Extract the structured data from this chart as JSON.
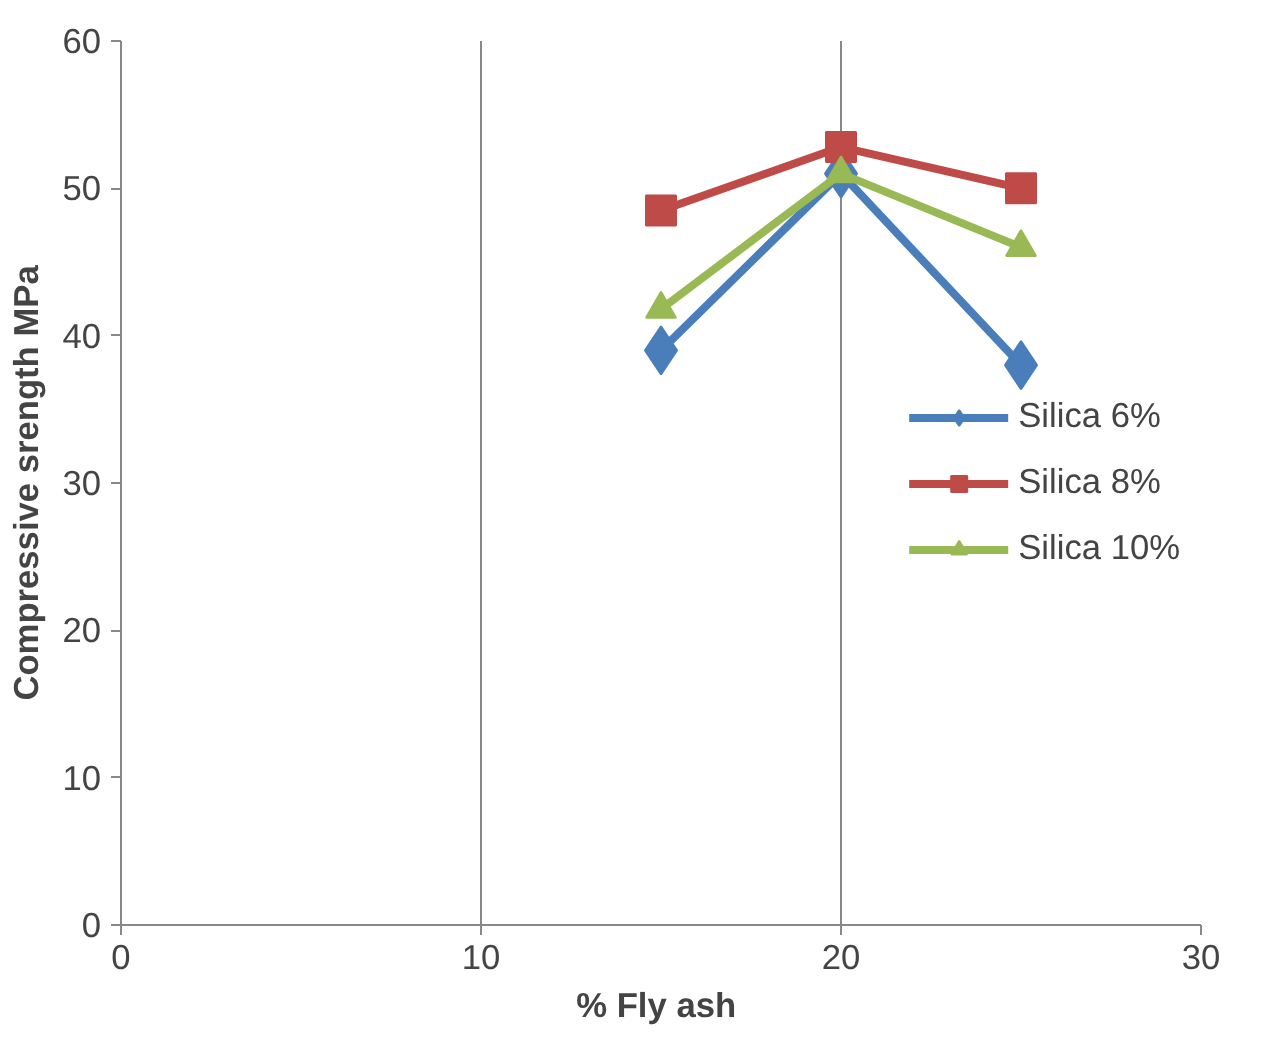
{
  "chart_data": {
    "type": "line",
    "xlabel": "%  Fly ash",
    "ylabel": "Compressive srength MPa",
    "x": [
      15,
      20,
      25
    ],
    "series": [
      {
        "name": "Silica 6%",
        "color": "#4a7ebb",
        "marker": "diamond",
        "values": [
          39,
          51,
          38
        ]
      },
      {
        "name": "Silica 8%",
        "color": "#be4b48",
        "marker": "square",
        "values": [
          48.5,
          52.8,
          50
        ]
      },
      {
        "name": "Silica 10%",
        "color": "#98b954",
        "marker": "triangle",
        "values": [
          41.8,
          51,
          46
        ]
      }
    ],
    "xlim": [
      0,
      30
    ],
    "xticks": [
      0,
      10,
      20,
      30
    ],
    "ylim": [
      0,
      60
    ],
    "yticks": [
      0,
      10,
      20,
      30,
      40,
      50,
      60
    ],
    "grid": "x",
    "legend": "right",
    "line_style": "solid"
  }
}
